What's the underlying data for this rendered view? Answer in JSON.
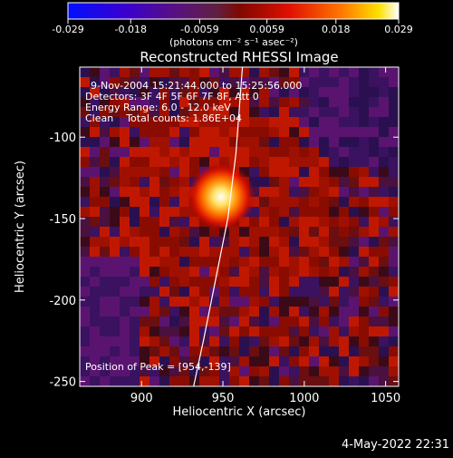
{
  "title": "Reconstructed RHESSI Image",
  "colorbar": {
    "ticks": [
      "-0.029",
      "-0.018",
      "-0.0059",
      "0.0059",
      "0.018",
      "0.029"
    ],
    "range": [
      -0.029,
      0.029
    ],
    "unit": "(photons cm⁻² s⁻¹ asec⁻²)"
  },
  "info": {
    "time": "9-Nov-2004 15:21:44.000 to 15:25:56.000",
    "detectors": "Detectors: 3F 4F 5F 6F 7F 8F, Att 0",
    "energy": "Energy Range: 6.0 - 12.0 keV",
    "clean": "Clean    Total counts: 1.86E+04",
    "peak": "Position of Peak = [954,-139]"
  },
  "footer_date": "4-May-2022 22:31",
  "chart_data": {
    "type": "heatmap",
    "title": "Reconstructed RHESSI Image",
    "xlabel": "Heliocentric X (arcsec)",
    "ylabel": "Heliocentric Y (arcsec)",
    "xlim": [
      862,
      1058
    ],
    "ylim": [
      -253,
      -57
    ],
    "xticks": [
      900,
      950,
      1000,
      1050
    ],
    "yticks": [
      -100,
      -150,
      -200,
      -250
    ],
    "peak": {
      "x": 954,
      "y": -139,
      "value": 0.029
    },
    "limb_curve": [
      [
        962,
        -57
      ],
      [
        958,
        -110
      ],
      [
        953,
        -150
      ],
      [
        945,
        -190
      ],
      [
        938,
        -225
      ],
      [
        932,
        -253
      ]
    ],
    "colormap": [
      "#0010ff",
      "#4000c0",
      "#5a1070",
      "#6a1a20",
      "#c01000",
      "#ff5000",
      "#ffd000",
      "#ffffff"
    ]
  }
}
